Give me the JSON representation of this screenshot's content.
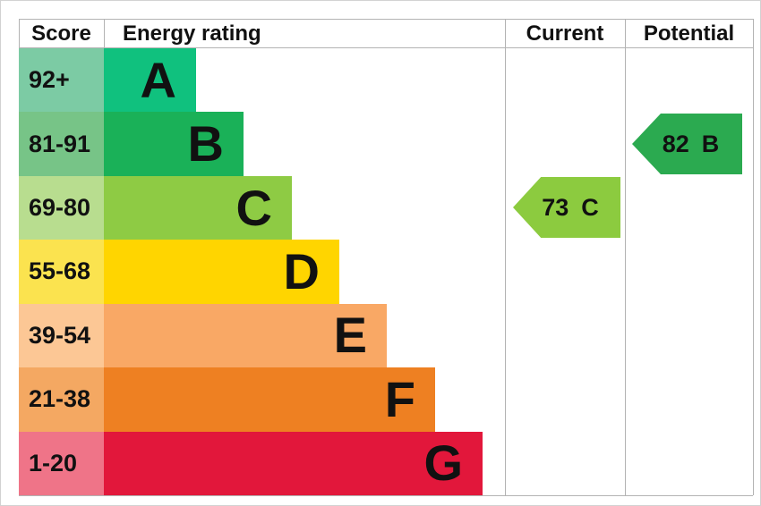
{
  "header": {
    "score": "Score",
    "energy_rating": "Energy rating",
    "current": "Current",
    "potential": "Potential"
  },
  "rows": [
    {
      "score_range": "92+",
      "grade": "A",
      "bar_color": "#10c17e",
      "score_color": "#7ccba4"
    },
    {
      "score_range": "81-91",
      "grade": "B",
      "bar_color": "#1ab158",
      "score_color": "#77c487"
    },
    {
      "score_range": "69-80",
      "grade": "C",
      "bar_color": "#8ecb44",
      "score_color": "#b8dd8f"
    },
    {
      "score_range": "55-68",
      "grade": "D",
      "bar_color": "#ffd500",
      "score_color": "#fbe34f"
    },
    {
      "score_range": "39-54",
      "grade": "E",
      "bar_color": "#f9a865",
      "score_color": "#fcc795"
    },
    {
      "score_range": "21-38",
      "grade": "F",
      "bar_color": "#ee8022",
      "score_color": "#f4a862"
    },
    {
      "score_range": "1-20",
      "grade": "G",
      "bar_color": "#e2173b",
      "score_color": "#ef7488"
    }
  ],
  "current": {
    "value": "73",
    "grade": "C",
    "color": "#8ccb3f",
    "row_index": 2
  },
  "potential": {
    "value": "82",
    "grade": "B",
    "color": "#2baa50",
    "row_index": 1
  },
  "chart_data": {
    "type": "bar",
    "title": "Energy rating",
    "categories": [
      "A",
      "B",
      "C",
      "D",
      "E",
      "F",
      "G"
    ],
    "score_ranges": [
      "92+",
      "81-91",
      "69-80",
      "55-68",
      "39-54",
      "21-38",
      "1-20"
    ],
    "columns": [
      "Score",
      "Energy rating",
      "Current",
      "Potential"
    ],
    "current": {
      "score": 73,
      "grade": "C"
    },
    "potential": {
      "score": 82,
      "grade": "B"
    },
    "band_colors": {
      "A": "#10c17e",
      "B": "#1ab158",
      "C": "#8ecb44",
      "D": "#ffd500",
      "E": "#f9a865",
      "F": "#ee8022",
      "G": "#e2173b"
    },
    "legend_position": "none",
    "grid": false
  }
}
